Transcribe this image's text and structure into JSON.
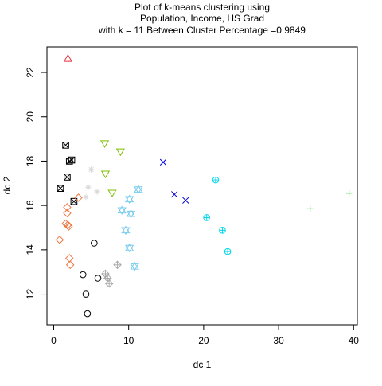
{
  "chart_data": {
    "type": "scatter",
    "title_lines": [
      "Plot of k-means clustering using",
      "Population, Income, HS Grad",
      "with  k = 11 Between Cluster Percentage =0.9849"
    ],
    "xlabel": "dc 1",
    "ylabel": "dc 2",
    "xlim": [
      -0.9,
      40.5
    ],
    "ylim": [
      10.62,
      23.15
    ],
    "xticks": [
      0,
      10,
      20,
      30,
      40
    ],
    "yticks": [
      12,
      14,
      16,
      18,
      20,
      22
    ],
    "grid": false,
    "legend": "none",
    "clusters": [
      {
        "pch": "triangle-up",
        "color": "#e8303a",
        "points": [
          [
            1.9,
            22.62
          ]
        ]
      },
      {
        "pch": "boxed-x",
        "color": "#000000",
        "points": [
          [
            1.6,
            18.72
          ],
          [
            2.1,
            18.0
          ],
          [
            2.4,
            18.05
          ],
          [
            1.8,
            17.28
          ],
          [
            0.9,
            16.77
          ],
          [
            2.7,
            16.18
          ]
        ]
      },
      {
        "pch": "triangle-down",
        "color": "#7fbf00",
        "points": [
          [
            6.8,
            18.8
          ],
          [
            8.9,
            18.43
          ],
          [
            6.9,
            17.43
          ],
          [
            7.8,
            16.57
          ]
        ]
      },
      {
        "pch": "x",
        "color": "#0000e0",
        "points": [
          [
            14.6,
            17.95
          ],
          [
            16.1,
            16.5
          ],
          [
            17.6,
            16.23
          ]
        ]
      },
      {
        "pch": "circle-plus",
        "color": "#00d8e8",
        "points": [
          [
            21.6,
            17.15
          ],
          [
            20.4,
            15.45
          ],
          [
            22.5,
            14.88
          ],
          [
            23.2,
            13.92
          ]
        ]
      },
      {
        "pch": "plus",
        "color": "#33dd33",
        "points": [
          [
            39.4,
            16.55
          ],
          [
            34.2,
            15.85
          ]
        ]
      },
      {
        "pch": "asterisk",
        "color": "#d8d8d8",
        "points": [
          [
            5.0,
            17.62
          ],
          [
            5.8,
            16.62
          ],
          [
            4.6,
            16.82
          ],
          [
            4.3,
            16.38
          ]
        ]
      },
      {
        "pch": "diamond",
        "color": "#ee7744",
        "points": [
          [
            3.3,
            16.35
          ],
          [
            1.8,
            15.92
          ],
          [
            1.8,
            15.65
          ],
          [
            1.6,
            15.18
          ],
          [
            1.9,
            15.12
          ],
          [
            2.0,
            15.05
          ],
          [
            0.8,
            14.45
          ],
          [
            2.1,
            13.62
          ],
          [
            2.2,
            13.32
          ]
        ]
      },
      {
        "pch": "star-of-david",
        "color": "#78ccee",
        "points": [
          [
            11.3,
            16.72
          ],
          [
            10.1,
            16.28
          ],
          [
            9.1,
            15.78
          ],
          [
            10.3,
            15.62
          ],
          [
            9.6,
            14.88
          ],
          [
            10.1,
            14.08
          ],
          [
            10.8,
            13.25
          ]
        ]
      },
      {
        "pch": "diamond-plus",
        "color": "#aaaaaa",
        "points": [
          [
            8.5,
            13.32
          ],
          [
            6.9,
            12.92
          ],
          [
            7.2,
            12.72
          ],
          [
            7.4,
            12.48
          ]
        ]
      },
      {
        "pch": "circle",
        "color": "#000000",
        "points": [
          [
            5.4,
            14.3
          ],
          [
            3.9,
            12.88
          ],
          [
            5.9,
            12.72
          ],
          [
            4.3,
            12.0
          ],
          [
            4.5,
            11.12
          ]
        ]
      }
    ]
  }
}
